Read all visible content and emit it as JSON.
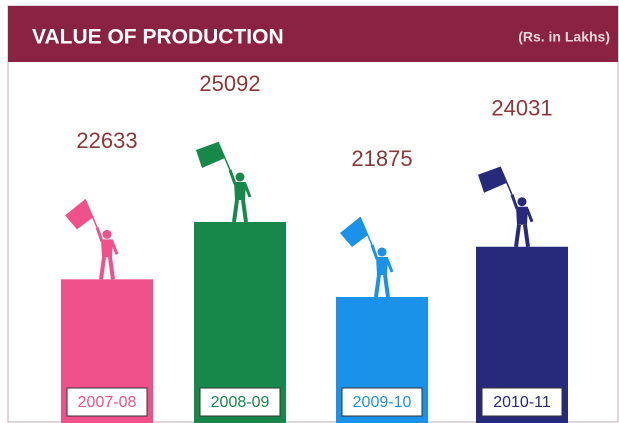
{
  "chart_data": {
    "type": "bar",
    "title": "VALUE OF PRODUCTION",
    "subtitle": "(Rs. in Lakhs)",
    "categories": [
      "2007-08",
      "2008-09",
      "2009-10",
      "2010-11"
    ],
    "values": [
      22633,
      25092,
      21875,
      24031
    ],
    "colors": [
      "#f0518a",
      "#17884a",
      "#1b92ea",
      "#27297a"
    ]
  }
}
